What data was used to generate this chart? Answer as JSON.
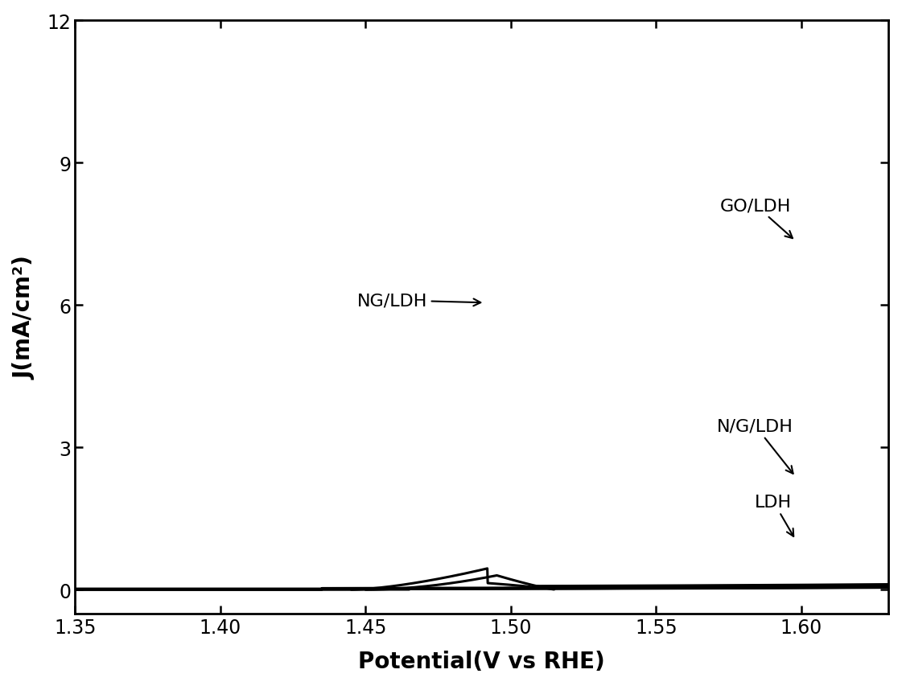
{
  "xlim": [
    1.35,
    1.63
  ],
  "ylim": [
    -0.5,
    12
  ],
  "yticks": [
    0,
    3,
    6,
    9,
    12
  ],
  "xticks": [
    1.35,
    1.4,
    1.45,
    1.5,
    1.55,
    1.6
  ],
  "xlabel": "Potential(V vs RHE)",
  "ylabel": "J(mA/cm²)",
  "background_color": "#ffffff",
  "line_color": "#000000",
  "label_fontsize": 20,
  "tick_fontsize": 17,
  "annot_fontsize": 16
}
